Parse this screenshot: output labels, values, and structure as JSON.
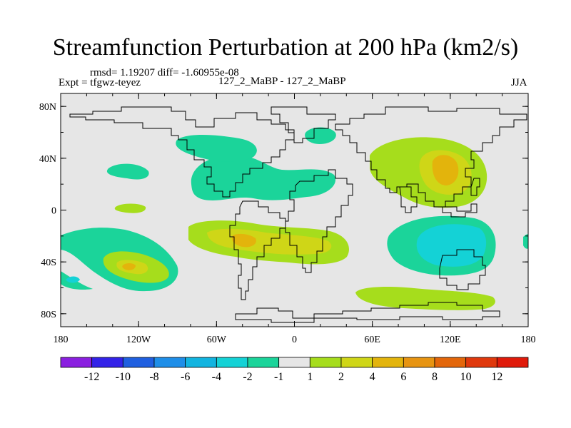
{
  "header": {
    "title": "Streamfunction Perturbation at 200 hPa (km2/s)",
    "stats": "rmsd= 1.19207 diff= -1.60955e-08",
    "experiment": "Expt = tfgwz-teyez",
    "comparison": "127_2_MaBP - 127_2_MaBP",
    "season": "JJA"
  },
  "axes": {
    "lat_ticks": [
      {
        "value": 80,
        "label": "80N"
      },
      {
        "value": 40,
        "label": "40N"
      },
      {
        "value": 0,
        "label": "0"
      },
      {
        "value": -40,
        "label": "40S"
      },
      {
        "value": -80,
        "label": "80S"
      }
    ],
    "lon_ticks": [
      {
        "value": -180,
        "label": "180"
      },
      {
        "value": -120,
        "label": "120W"
      },
      {
        "value": -60,
        "label": "60W"
      },
      {
        "value": 0,
        "label": "0"
      },
      {
        "value": 60,
        "label": "60E"
      },
      {
        "value": 120,
        "label": "120E"
      },
      {
        "value": 180,
        "label": "180"
      }
    ],
    "lon_range": [
      -180,
      180
    ],
    "lat_range": [
      -90,
      90
    ]
  },
  "colorbar": {
    "colors": [
      "#8a1fe0",
      "#3322e8",
      "#1f5fe0",
      "#1e8ee8",
      "#12b4e0",
      "#14d2d6",
      "#1bd49a",
      "#e6e6e6",
      "#a6dd1c",
      "#cfd617",
      "#e3b40c",
      "#e79411",
      "#e3660a",
      "#e0380c",
      "#e01a0a"
    ],
    "labels": [
      "-12",
      "-10",
      "-8",
      "-6",
      "-4",
      "-2",
      "-1",
      "1",
      "2",
      "4",
      "6",
      "8",
      "10",
      "12"
    ]
  },
  "colors": {
    "background": "#e6e6e6",
    "level_m1": "#1bd49a",
    "level_m2": "#14d2d6",
    "level_1": "#a6dd1c",
    "level_2": "#cfd617",
    "level_4": "#e3b40c"
  }
}
